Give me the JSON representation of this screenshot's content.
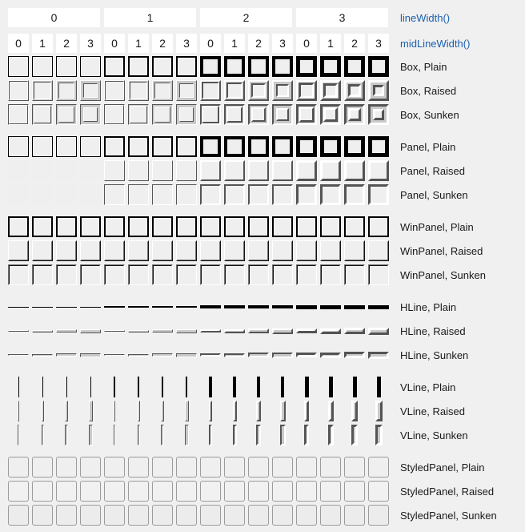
{
  "header": {
    "line_width_label": "lineWidth()",
    "mid_line_width_label": "midLineWidth()",
    "line_width_values": [
      "0",
      "1",
      "2",
      "3"
    ],
    "mid_line_width_values": [
      "0",
      "1",
      "2",
      "3",
      "0",
      "1",
      "2",
      "3",
      "0",
      "1",
      "2",
      "3",
      "0",
      "1",
      "2",
      "3"
    ]
  },
  "rows": [
    {
      "label": "Box, Plain",
      "shape": "box",
      "shadow": "plain"
    },
    {
      "label": "Box, Raised",
      "shape": "box",
      "shadow": "raised"
    },
    {
      "label": "Box, Sunken",
      "shape": "box",
      "shadow": "sunken"
    },
    {
      "label": "Panel, Plain",
      "shape": "panel",
      "shadow": "plain"
    },
    {
      "label": "Panel, Raised",
      "shape": "panel",
      "shadow": "raised"
    },
    {
      "label": "Panel, Sunken",
      "shape": "panel",
      "shadow": "sunken"
    },
    {
      "label": "WinPanel, Plain",
      "shape": "winpanel",
      "shadow": "plain"
    },
    {
      "label": "WinPanel, Raised",
      "shape": "winpanel",
      "shadow": "raised"
    },
    {
      "label": "WinPanel, Sunken",
      "shape": "winpanel",
      "shadow": "sunken"
    },
    {
      "label": "HLine, Plain",
      "shape": "hline",
      "shadow": "plain"
    },
    {
      "label": "HLine, Raised",
      "shape": "hline",
      "shadow": "raised"
    },
    {
      "label": "HLine, Sunken",
      "shape": "hline",
      "shadow": "sunken"
    },
    {
      "label": "VLine, Plain",
      "shape": "vline",
      "shadow": "plain"
    },
    {
      "label": "VLine, Raised",
      "shape": "vline",
      "shadow": "raised"
    },
    {
      "label": "VLine, Sunken",
      "shape": "vline",
      "shadow": "sunken"
    },
    {
      "label": "StyledPanel, Plain",
      "shape": "styledpanel",
      "shadow": "plain"
    },
    {
      "label": "StyledPanel, Raised",
      "shape": "styledpanel",
      "shadow": "raised"
    },
    {
      "label": "StyledPanel, Sunken",
      "shape": "styledpanel",
      "shadow": "sunken"
    }
  ],
  "line_width_options": [
    0,
    1,
    2,
    3
  ],
  "mid_line_width_options": [
    0,
    1,
    2,
    3
  ],
  "colors": {
    "page_bg": "#f0f0f0",
    "cell_bg": "#ffffff",
    "widget_bg": "#efefef",
    "plain": "#000000",
    "bevel_light": "#ffffff",
    "bevel_dark": "#545454",
    "mid_band": "#c9c9c9",
    "win_dark_outer": "#111111",
    "win_dark_inner": "#707070",
    "win_light_outer": "#ffffff",
    "win_light_inner": "#efefef",
    "styled_border": "#9b9b9b",
    "link": "#1a5fae",
    "text": "#1a1a1a"
  }
}
